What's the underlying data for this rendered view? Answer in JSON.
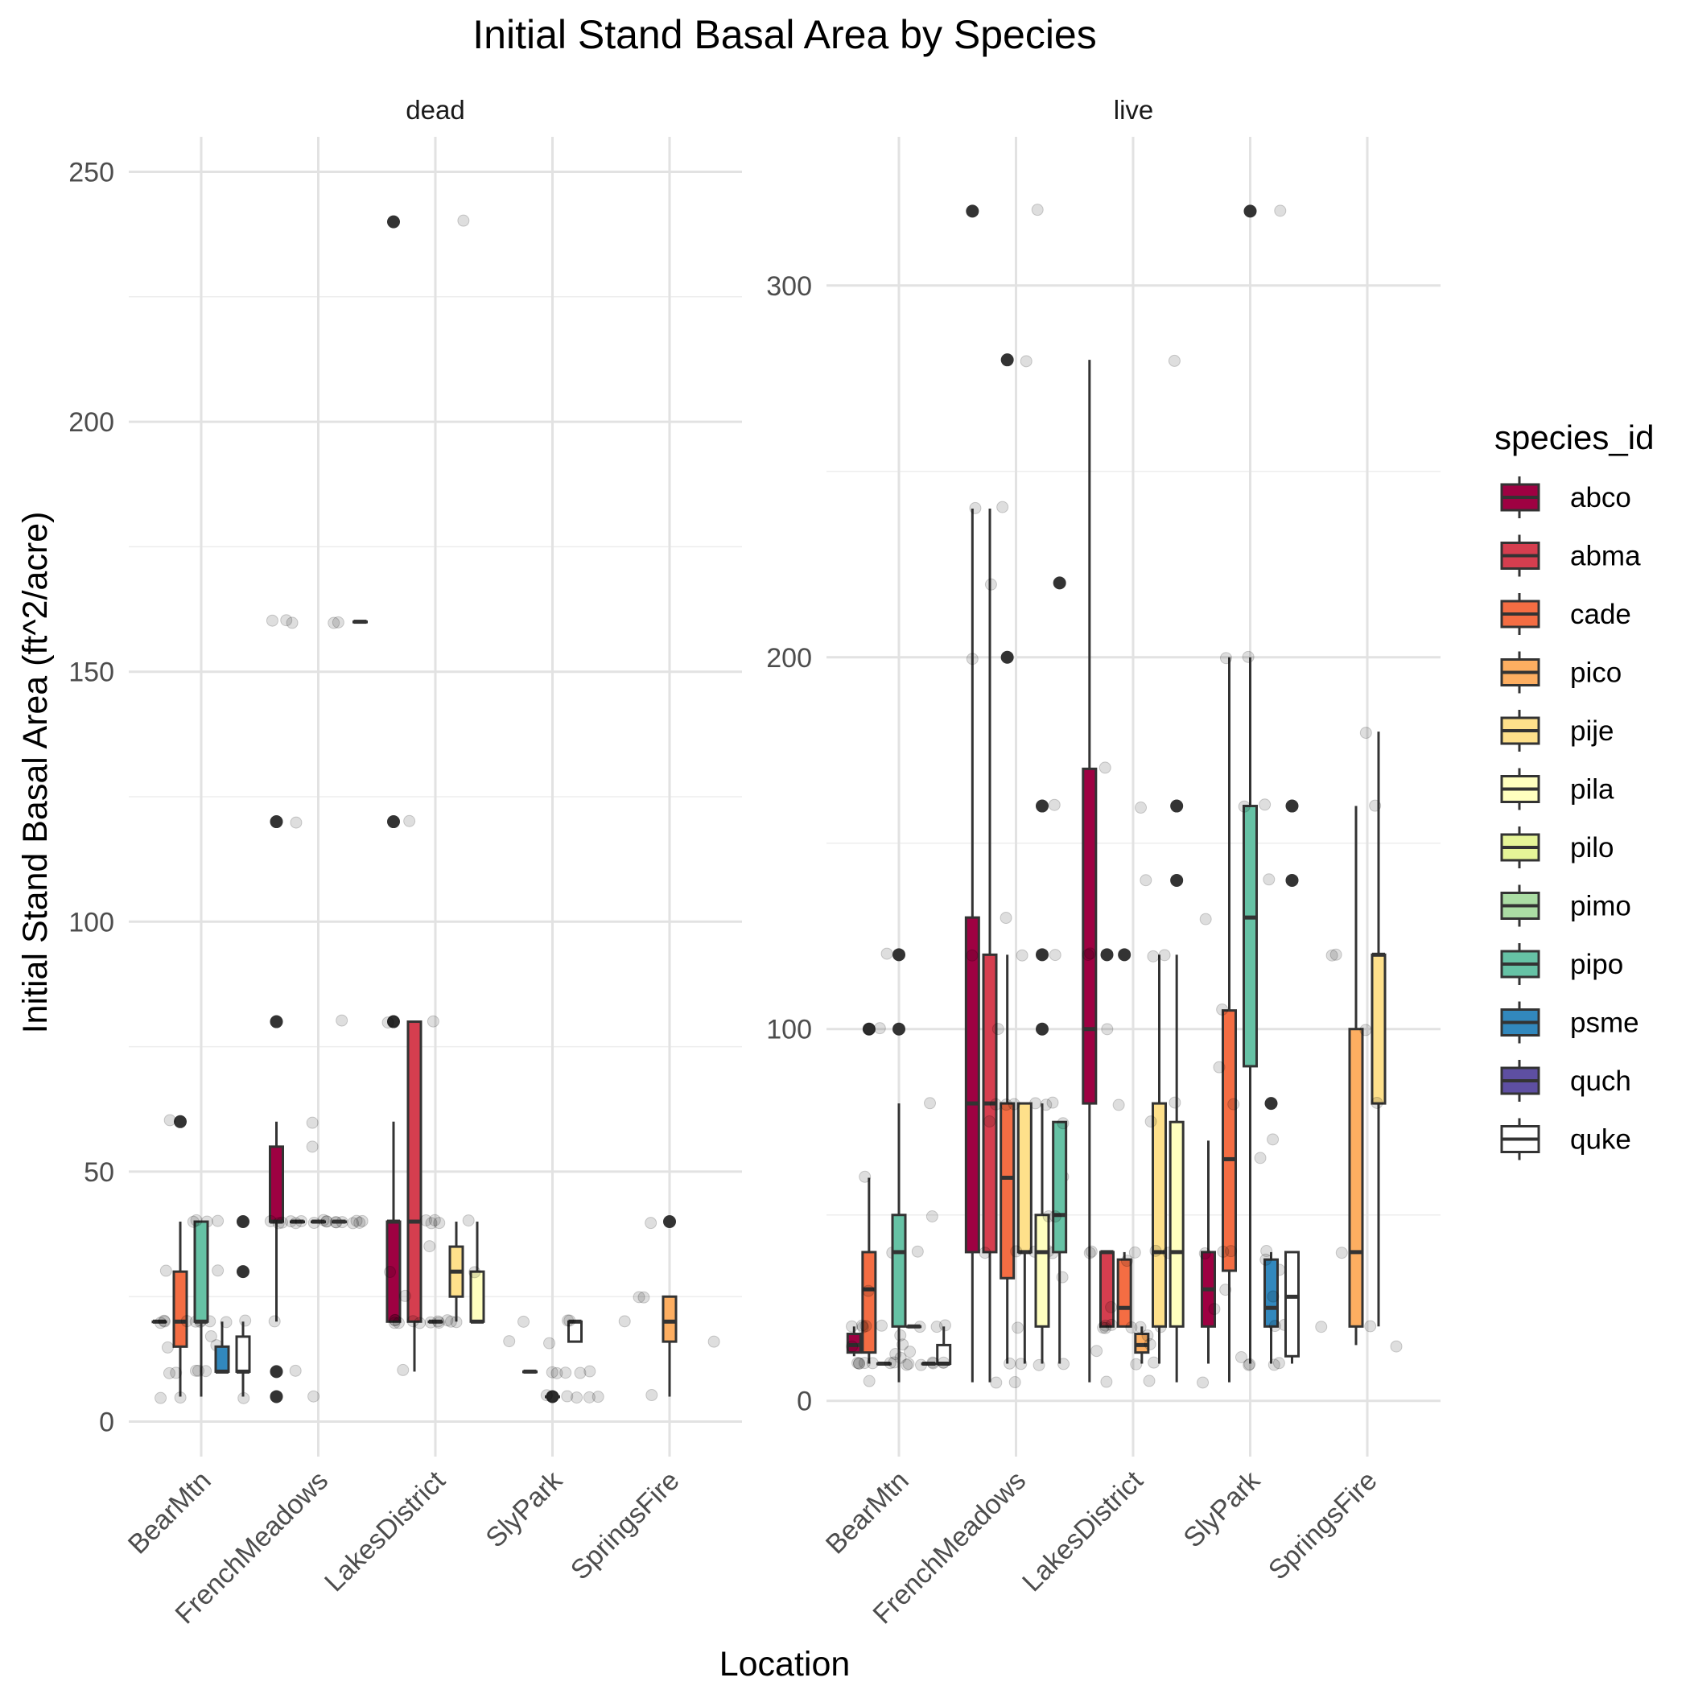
{
  "chart_data": {
    "type": "boxplot",
    "title": "Initial Stand Basal Area by Species",
    "xlabel": "Location",
    "ylabel": "Initial Stand Basal Area (ft^2/acre)",
    "legend_title": "species_id",
    "legend_position": "right",
    "grid": true,
    "facet_scales": "free_y",
    "categories": [
      "BearMtn",
      "FrenchMeadows",
      "LakesDistrict",
      "SlyPark",
      "SpringsFire"
    ],
    "species": [
      "abco",
      "abma",
      "cade",
      "pico",
      "pije",
      "pila",
      "pilo",
      "pimo",
      "pipo",
      "psme",
      "quch",
      "quke"
    ],
    "colors": {
      "abco": "#9E0142",
      "abma": "#D53E4F",
      "cade": "#F46D43",
      "pico": "#FDAE61",
      "pije": "#FEE08B",
      "pila": "#FFFFBF",
      "pilo": "#E6F598",
      "pimo": "#ABDDA4",
      "pipo": "#66C2A5",
      "psme": "#3288BD",
      "quch": "#5E4FA2",
      "quke": "#FFFFFF"
    },
    "panels": [
      {
        "strip": "dead",
        "ylim": [
          -7,
          257
        ],
        "yticks": [
          0,
          50,
          100,
          150,
          200,
          250
        ],
        "groups": [
          {
            "location": "BearMtn",
            "species": "abco",
            "q1": 20,
            "median": 20,
            "q3": 20,
            "whisker_low": 20,
            "whisker_high": 20,
            "outliers": []
          },
          {
            "location": "BearMtn",
            "species": "cade",
            "q1": 15,
            "median": 20,
            "q3": 30,
            "whisker_low": 5,
            "whisker_high": 40,
            "outliers": [
              60
            ]
          },
          {
            "location": "BearMtn",
            "species": "pipo",
            "q1": 20,
            "median": 20,
            "q3": 40,
            "whisker_low": 5,
            "whisker_high": 40,
            "outliers": []
          },
          {
            "location": "BearMtn",
            "species": "psme",
            "q1": 10,
            "median": 10,
            "q3": 15,
            "whisker_low": 10,
            "whisker_high": 20,
            "outliers": []
          },
          {
            "location": "BearMtn",
            "species": "quke",
            "q1": 10,
            "median": 10,
            "q3": 17,
            "whisker_low": 5,
            "whisker_high": 20,
            "outliers": [
              30,
              40
            ]
          },
          {
            "location": "FrenchMeadows",
            "species": "abco",
            "q1": 40,
            "median": 40,
            "q3": 55,
            "whisker_low": 20,
            "whisker_high": 60,
            "outliers": [
              5,
              10,
              80,
              120
            ]
          },
          {
            "location": "FrenchMeadows",
            "species": "abma",
            "q1": 40,
            "median": 40,
            "q3": 40,
            "whisker_low": 40,
            "whisker_high": 40,
            "outliers": []
          },
          {
            "location": "FrenchMeadows",
            "species": "cade",
            "q1": 40,
            "median": 40,
            "q3": 40,
            "whisker_low": 40,
            "whisker_high": 40,
            "outliers": []
          },
          {
            "location": "FrenchMeadows",
            "species": "pije",
            "q1": 40,
            "median": 40,
            "q3": 40,
            "whisker_low": 40,
            "whisker_high": 40,
            "outliers": []
          },
          {
            "location": "FrenchMeadows",
            "species": "pila",
            "q1": 160,
            "median": 160,
            "q3": 160,
            "whisker_low": 160,
            "whisker_high": 160,
            "outliers": []
          },
          {
            "location": "LakesDistrict",
            "species": "abco",
            "q1": 20,
            "median": 40,
            "q3": 40,
            "whisker_low": 20,
            "whisker_high": 60,
            "outliers": [
              80,
              120,
              240
            ]
          },
          {
            "location": "LakesDistrict",
            "species": "abma",
            "q1": 20,
            "median": 40,
            "q3": 80,
            "whisker_low": 10,
            "whisker_high": 80,
            "outliers": []
          },
          {
            "location": "LakesDistrict",
            "species": "cade",
            "q1": 20,
            "median": 20,
            "q3": 20,
            "whisker_low": 20,
            "whisker_high": 20,
            "outliers": []
          },
          {
            "location": "LakesDistrict",
            "species": "pije",
            "q1": 25,
            "median": 30,
            "q3": 35,
            "whisker_low": 20,
            "whisker_high": 40,
            "outliers": []
          },
          {
            "location": "LakesDistrict",
            "species": "pila",
            "q1": 20,
            "median": 20,
            "q3": 30,
            "whisker_low": 20,
            "whisker_high": 40,
            "outliers": []
          },
          {
            "location": "SlyPark",
            "species": "abco",
            "q1": 10,
            "median": 10,
            "q3": 10,
            "whisker_low": 10,
            "whisker_high": 10,
            "outliers": []
          },
          {
            "location": "SlyPark",
            "species": "psme",
            "q1": 5,
            "median": 5,
            "q3": 5,
            "whisker_low": 5,
            "whisker_high": 5,
            "outliers": [
              5
            ]
          },
          {
            "location": "SlyPark",
            "species": "quke",
            "q1": 16,
            "median": 20,
            "q3": 20,
            "whisker_low": 16,
            "whisker_high": 20,
            "outliers": []
          },
          {
            "location": "SpringsFire",
            "species": "pico",
            "q1": 16,
            "median": 20,
            "q3": 25,
            "whisker_low": 5,
            "whisker_high": 25,
            "outliers": [
              40
            ]
          }
        ]
      },
      {
        "strip": "live",
        "ylim": [
          -15,
          340
        ],
        "yticks": [
          0,
          100,
          200,
          300
        ],
        "groups": [
          {
            "location": "BearMtn",
            "species": "abco",
            "q1": 13,
            "median": 15,
            "q3": 18,
            "whisker_low": 12,
            "whisker_high": 20,
            "outliers": []
          },
          {
            "location": "BearMtn",
            "species": "cade",
            "q1": 13,
            "median": 30,
            "q3": 40,
            "whisker_low": 10,
            "whisker_high": 60,
            "outliers": [
              100
            ]
          },
          {
            "location": "BearMtn",
            "species": "pico",
            "q1": 10,
            "median": 10,
            "q3": 10,
            "whisker_low": 10,
            "whisker_high": 10,
            "outliers": []
          },
          {
            "location": "BearMtn",
            "species": "pipo",
            "q1": 20,
            "median": 40,
            "q3": 50,
            "whisker_low": 5,
            "whisker_high": 80,
            "outliers": [
              100,
              120
            ]
          },
          {
            "location": "BearMtn",
            "species": "psme",
            "q1": 20,
            "median": 20,
            "q3": 20,
            "whisker_low": 20,
            "whisker_high": 20,
            "outliers": []
          },
          {
            "location": "BearMtn",
            "species": "quch",
            "q1": 10,
            "median": 10,
            "q3": 10,
            "whisker_low": 10,
            "whisker_high": 10,
            "outliers": []
          },
          {
            "location": "BearMtn",
            "species": "quke",
            "q1": 10,
            "median": 10,
            "q3": 15,
            "whisker_low": 10,
            "whisker_high": 20,
            "outliers": []
          },
          {
            "location": "FrenchMeadows",
            "species": "abco",
            "q1": 40,
            "median": 80,
            "q3": 130,
            "whisker_low": 5,
            "whisker_high": 240,
            "outliers": [
              320
            ]
          },
          {
            "location": "FrenchMeadows",
            "species": "abma",
            "q1": 40,
            "median": 80,
            "q3": 120,
            "whisker_low": 5,
            "whisker_high": 240,
            "outliers": []
          },
          {
            "location": "FrenchMeadows",
            "species": "cade",
            "q1": 33,
            "median": 60,
            "q3": 80,
            "whisker_low": 10,
            "whisker_high": 120,
            "outliers": [
              200,
              280
            ]
          },
          {
            "location": "FrenchMeadows",
            "species": "pije",
            "q1": 40,
            "median": 40,
            "q3": 80,
            "whisker_low": 10,
            "whisker_high": 80,
            "outliers": []
          },
          {
            "location": "FrenchMeadows",
            "species": "pila",
            "q1": 20,
            "median": 40,
            "q3": 50,
            "whisker_low": 10,
            "whisker_high": 80,
            "outliers": [
              100,
              120,
              160
            ]
          },
          {
            "location": "FrenchMeadows",
            "species": "pipo",
            "q1": 40,
            "median": 50,
            "q3": 75,
            "whisker_low": 10,
            "whisker_high": 75,
            "outliers": [
              220
            ]
          },
          {
            "location": "LakesDistrict",
            "species": "abco",
            "q1": 80,
            "median": 100,
            "q3": 170,
            "whisker_low": 5,
            "whisker_high": 280,
            "outliers": []
          },
          {
            "location": "LakesDistrict",
            "species": "abma",
            "q1": 20,
            "median": 40,
            "q3": 40,
            "whisker_low": 20,
            "whisker_high": 40,
            "outliers": [
              120
            ]
          },
          {
            "location": "LakesDistrict",
            "species": "cade",
            "q1": 20,
            "median": 25,
            "q3": 38,
            "whisker_low": 20,
            "whisker_high": 40,
            "outliers": [
              120
            ]
          },
          {
            "location": "LakesDistrict",
            "species": "pico",
            "q1": 13,
            "median": 15,
            "q3": 18,
            "whisker_low": 10,
            "whisker_high": 20,
            "outliers": []
          },
          {
            "location": "LakesDistrict",
            "species": "pije",
            "q1": 20,
            "median": 40,
            "q3": 80,
            "whisker_low": 10,
            "whisker_high": 120,
            "outliers": []
          },
          {
            "location": "LakesDistrict",
            "species": "pila",
            "q1": 20,
            "median": 40,
            "q3": 75,
            "whisker_low": 5,
            "whisker_high": 120,
            "outliers": [
              140,
              160
            ]
          },
          {
            "location": "SlyPark",
            "species": "abco",
            "q1": 20,
            "median": 30,
            "q3": 40,
            "whisker_low": 10,
            "whisker_high": 70,
            "outliers": []
          },
          {
            "location": "SlyPark",
            "species": "cade",
            "q1": 35,
            "median": 65,
            "q3": 105,
            "whisker_low": 5,
            "whisker_high": 200,
            "outliers": []
          },
          {
            "location": "SlyPark",
            "species": "pipo",
            "q1": 90,
            "median": 130,
            "q3": 160,
            "whisker_low": 10,
            "whisker_high": 200,
            "outliers": [
              320
            ]
          },
          {
            "location": "SlyPark",
            "species": "psme",
            "q1": 20,
            "median": 25,
            "q3": 38,
            "whisker_low": 10,
            "whisker_high": 40,
            "outliers": [
              80
            ]
          },
          {
            "location": "SlyPark",
            "species": "quke",
            "q1": 12,
            "median": 28,
            "q3": 40,
            "whisker_low": 10,
            "whisker_high": 40,
            "outliers": [
              140,
              160
            ]
          },
          {
            "location": "SpringsFire",
            "species": "pico",
            "q1": 20,
            "median": 40,
            "q3": 100,
            "whisker_low": 15,
            "whisker_high": 160,
            "outliers": []
          },
          {
            "location": "SpringsFire",
            "species": "pije",
            "q1": 80,
            "median": 120,
            "q3": 120,
            "whisker_low": 20,
            "whisker_high": 180,
            "outliers": []
          }
        ]
      }
    ]
  }
}
